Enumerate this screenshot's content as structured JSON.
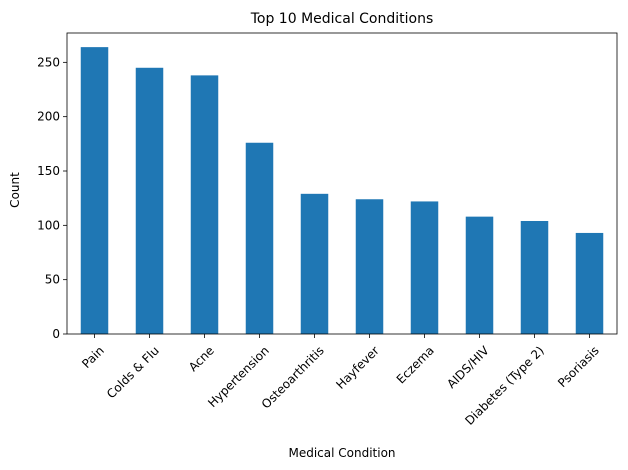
{
  "chart_data": {
    "type": "bar",
    "title": "Top 10 Medical Conditions",
    "xlabel": "Medical Condition",
    "ylabel": "Count",
    "categories": [
      "Pain",
      "Colds & Flu",
      "Acne",
      "Hypertension",
      "Osteoarthritis",
      "Hayfever",
      "Eczema",
      "AIDS/HIV",
      "Diabetes (Type 2)",
      "Psoriasis"
    ],
    "values": [
      264,
      245,
      238,
      176,
      129,
      124,
      122,
      108,
      104,
      93
    ],
    "ylim": [
      0,
      277
    ],
    "yticks": [
      0,
      50,
      100,
      150,
      200,
      250
    ],
    "ytick_labels": [
      "0",
      "50",
      "100",
      "150",
      "200",
      "250"
    ],
    "bar_color": "#1f77b4",
    "grid": false,
    "legend": false
  }
}
